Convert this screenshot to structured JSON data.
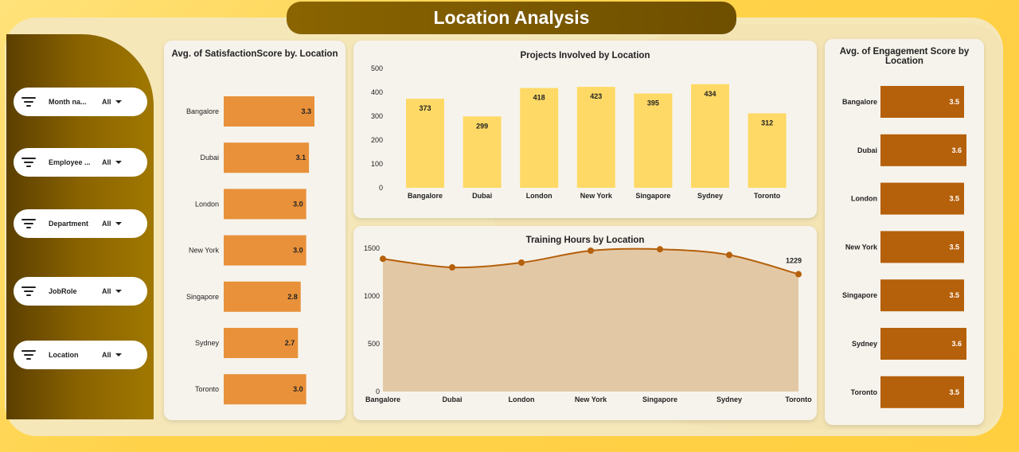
{
  "page_title": "Location Analysis",
  "slicers": [
    {
      "label": "Month na...",
      "value": "All"
    },
    {
      "label": "Employee ...",
      "value": "All"
    },
    {
      "label": "Department",
      "value": "All"
    },
    {
      "label": "JobRole",
      "value": "All"
    },
    {
      "label": "Location",
      "value": "All"
    }
  ],
  "colors": {
    "accent_dark": "#6e4f00",
    "satisfaction_bar": "#e8913a",
    "projects_bar": "#ffd966",
    "engagement_bar": "#b5600a",
    "training_line": "#b5600a",
    "training_area": "#e3c8a6"
  },
  "chart_data": [
    {
      "type": "bar",
      "orientation": "horizontal",
      "title": "Avg. of SatisfactionScore by. Location",
      "categories": [
        "Bangalore",
        "Dubai",
        "London",
        "New York",
        "Singapore",
        "Sydney",
        "Toronto"
      ],
      "values": [
        3.3,
        3.1,
        3.0,
        3.0,
        2.8,
        2.7,
        3.0
      ],
      "labels": [
        "3.3",
        "3.1",
        "3.0",
        "3.0",
        "2.8",
        "2.7",
        "3.0"
      ]
    },
    {
      "type": "bar",
      "orientation": "vertical",
      "title": "Projects Involved by Location",
      "categories": [
        "Bangalore",
        "Dubai",
        "London",
        "New York",
        "Singapore",
        "Sydney",
        "Toronto"
      ],
      "values": [
        373,
        299,
        418,
        423,
        395,
        434,
        312
      ],
      "ylim": [
        0,
        500
      ],
      "yticks": [
        "0",
        "100",
        "200",
        "300",
        "400",
        "500"
      ]
    },
    {
      "type": "area",
      "title": "Training Hours by Location",
      "categories": [
        "Bangalore",
        "Dubai",
        "London",
        "New York",
        "Singapore",
        "Sydney",
        "Toronto"
      ],
      "values": [
        1390,
        1300,
        1350,
        1475,
        1490,
        1430,
        1229
      ],
      "point_labels": [
        "",
        "",
        "",
        "",
        "",
        "",
        "1229"
      ],
      "ylim": [
        0,
        1500
      ],
      "yticks": [
        "0",
        "500",
        "1000",
        "1500"
      ]
    },
    {
      "type": "bar",
      "orientation": "horizontal",
      "title": "Avg. of Engagement Score by Location",
      "categories": [
        "Bangalore",
        "Dubai",
        "London",
        "New York",
        "Singapore",
        "Sydney",
        "Toronto"
      ],
      "values": [
        3.5,
        3.6,
        3.5,
        3.5,
        3.5,
        3.6,
        3.5
      ],
      "labels": [
        "3.5",
        "3.6",
        "3.5",
        "3.5",
        "3.5",
        "3.6",
        "3.5"
      ]
    }
  ]
}
